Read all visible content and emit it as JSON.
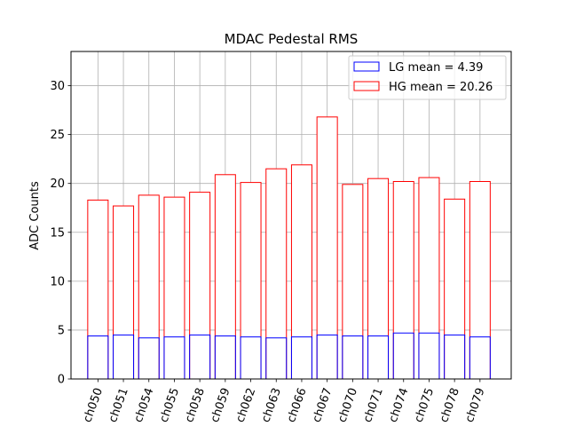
{
  "chart_data": {
    "type": "bar",
    "title": "MDAC Pedestal RMS",
    "xlabel": "",
    "ylabel": "ADC Counts",
    "ylim": [
      0,
      33.5
    ],
    "yticks": [
      0,
      5,
      10,
      15,
      20,
      25,
      30
    ],
    "grid": true,
    "legend_position": "top-right",
    "categories": [
      "ch050",
      "ch051",
      "ch054",
      "ch055",
      "ch058",
      "ch059",
      "ch062",
      "ch063",
      "ch066",
      "ch067",
      "ch070",
      "ch071",
      "ch074",
      "ch075",
      "ch078",
      "ch079"
    ],
    "series": [
      {
        "name": "HG",
        "legend_label": "HG mean = 20.26",
        "color": "#ff0000",
        "values": [
          18.3,
          17.7,
          18.8,
          18.6,
          19.1,
          20.9,
          20.1,
          21.5,
          21.9,
          26.8,
          19.9,
          20.5,
          20.2,
          20.6,
          18.4,
          20.2
        ]
      },
      {
        "name": "LG",
        "legend_label": "LG mean = 4.39",
        "color": "#0000ff",
        "values": [
          4.4,
          4.5,
          4.2,
          4.3,
          4.5,
          4.4,
          4.3,
          4.2,
          4.3,
          4.5,
          4.4,
          4.4,
          4.7,
          4.7,
          4.5,
          4.3
        ]
      }
    ]
  }
}
